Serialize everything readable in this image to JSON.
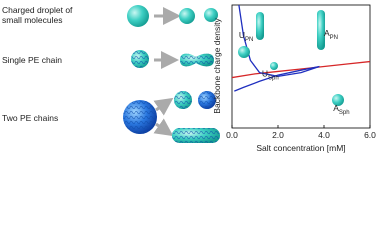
{
  "diagram": {
    "rows": [
      {
        "label": [
          "Charged droplet of",
          "small molecules"
        ]
      },
      {
        "label": [
          "Single PE chain"
        ]
      },
      {
        "label": [
          "Two PE chains"
        ]
      }
    ]
  },
  "chart_data": {
    "type": "line",
    "xlabel": "Salt concentration [mM]",
    "ylabel": "Backbone charge density",
    "xlim": [
      0,
      6
    ],
    "ylim": [
      0,
      1
    ],
    "xticks": [
      {
        "value": 0,
        "label": "0.0"
      },
      {
        "value": 2,
        "label": "2.0"
      },
      {
        "value": 4,
        "label": "4.0"
      },
      {
        "value": 6,
        "label": "6.0"
      }
    ],
    "series": [
      {
        "color": "#d62728",
        "x": [
          0,
          1,
          2,
          3,
          4,
          5,
          6
        ],
        "values": [
          0.41,
          0.44,
          0.46,
          0.48,
          0.5,
          0.52,
          0.54
        ]
      },
      {
        "color": "#1f2fbf",
        "x": [
          0.3,
          0.5,
          0.8,
          1.2,
          2,
          3,
          3.8
        ],
        "values": [
          1.0,
          0.75,
          0.55,
          0.45,
          0.42,
          0.45,
          0.5
        ]
      },
      {
        "color": "#1f2fbf",
        "x": [
          0.1,
          0.5,
          1.2,
          2,
          3,
          3.8
        ],
        "values": [
          0.3,
          0.33,
          0.38,
          0.43,
          0.47,
          0.5
        ]
      }
    ],
    "annotations": [
      {
        "main": "U",
        "sub": "PN",
        "x": 0.3,
        "y": 0.73
      },
      {
        "main": "A",
        "sub": "PN",
        "x": 4.0,
        "y": 0.75
      },
      {
        "main": "U",
        "sub": "Sph",
        "x": 1.3,
        "y": 0.42
      },
      {
        "main": "A",
        "sub": "Sph",
        "x": 4.4,
        "y": 0.14
      }
    ]
  }
}
